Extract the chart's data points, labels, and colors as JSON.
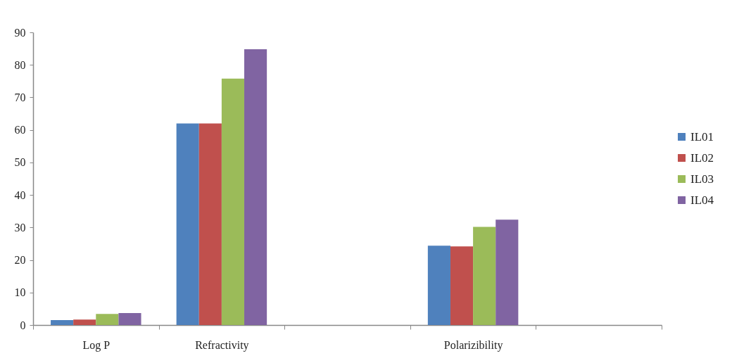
{
  "chart_data": {
    "type": "bar",
    "categories": [
      "Log P",
      "Refractivity",
      null,
      "Polarizibility",
      null
    ],
    "series": [
      {
        "name": "IL01",
        "color": "#4f81bd",
        "values": [
          1.5,
          62,
          null,
          24.4,
          null
        ]
      },
      {
        "name": "IL02",
        "color": "#c0504d",
        "values": [
          1.7,
          62,
          null,
          24.2,
          null
        ]
      },
      {
        "name": "IL03",
        "color": "#9bbb59",
        "values": [
          3.4,
          75.8,
          null,
          30.2,
          null
        ]
      },
      {
        "name": "IL04",
        "color": "#8064a2",
        "values": [
          3.7,
          84.8,
          null,
          32.4,
          null
        ]
      }
    ],
    "ylim": [
      0,
      90
    ],
    "yticks": [
      0,
      10,
      20,
      30,
      40,
      50,
      60,
      70,
      80,
      90
    ],
    "grid": false,
    "legend": "right"
  }
}
